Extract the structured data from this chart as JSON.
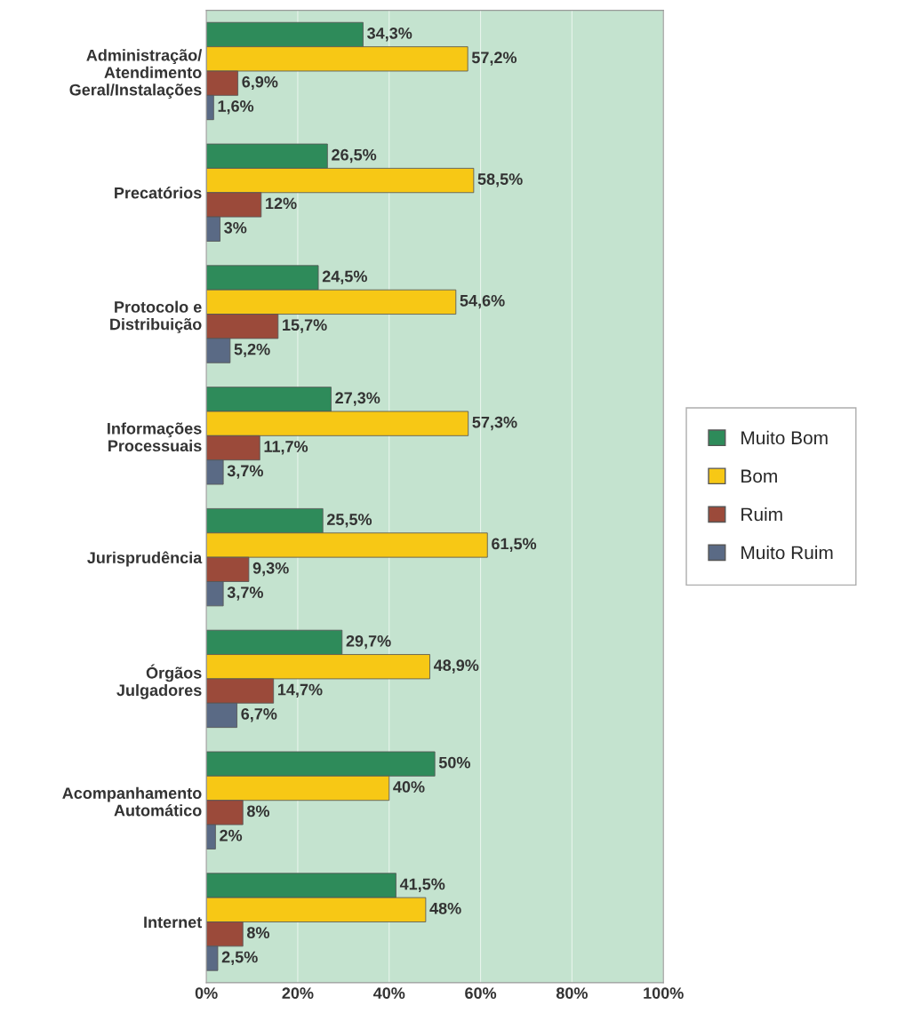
{
  "chart_data": {
    "type": "bar",
    "orientation": "horizontal",
    "categories": [
      "Administração/\nAtendimento\nGeral/Instalações",
      "Precatórios",
      "Protocolo e\nDistribuição",
      "Informações\nProcessuais",
      "Jurisprudência",
      "Órgãos\nJulgadores",
      "Acompanhamento\nAutomático",
      "Internet"
    ],
    "series": [
      {
        "name": "Muito Bom",
        "color": "#2e8b5a",
        "values": [
          34.3,
          26.5,
          24.5,
          27.3,
          25.5,
          29.7,
          50,
          41.5
        ],
        "value_labels": [
          "34,3%",
          "26,5%",
          "24,5%",
          "27,3%",
          "25,5%",
          "29,7%",
          "50%",
          "41,5%"
        ]
      },
      {
        "name": "Bom",
        "color": "#f7c815",
        "values": [
          57.2,
          58.5,
          54.6,
          57.3,
          61.5,
          48.9,
          40,
          48
        ],
        "value_labels": [
          "57,2%",
          "58,5%",
          "54,6%",
          "57,3%",
          "61,5%",
          "48,9%",
          "40%",
          "48%"
        ]
      },
      {
        "name": "Ruim",
        "color": "#9b4a3a",
        "values": [
          6.9,
          12,
          15.7,
          11.7,
          9.3,
          14.7,
          8,
          8
        ],
        "value_labels": [
          "6,9%",
          "12%",
          "15,7%",
          "11,7%",
          "9,3%",
          "14,7%",
          "8%",
          "8%"
        ]
      },
      {
        "name": "Muito Ruim",
        "color": "#5a6a85",
        "values": [
          1.6,
          3,
          5.2,
          3.7,
          3.7,
          6.7,
          2,
          2.5
        ],
        "value_labels": [
          "1,6%",
          "3%",
          "5,2%",
          "3,7%",
          "3,7%",
          "6,7%",
          "2%",
          "2,5%"
        ]
      }
    ],
    "xlim": [
      0,
      100
    ],
    "xticks": [
      {
        "value": 0,
        "label": "0%"
      },
      {
        "value": 20,
        "label": "20%"
      },
      {
        "value": 40,
        "label": "40%"
      },
      {
        "value": 60,
        "label": "60%"
      },
      {
        "value": 80,
        "label": "80%"
      },
      {
        "value": 100,
        "label": "100%"
      }
    ],
    "grid": "x",
    "legend": "right"
  }
}
